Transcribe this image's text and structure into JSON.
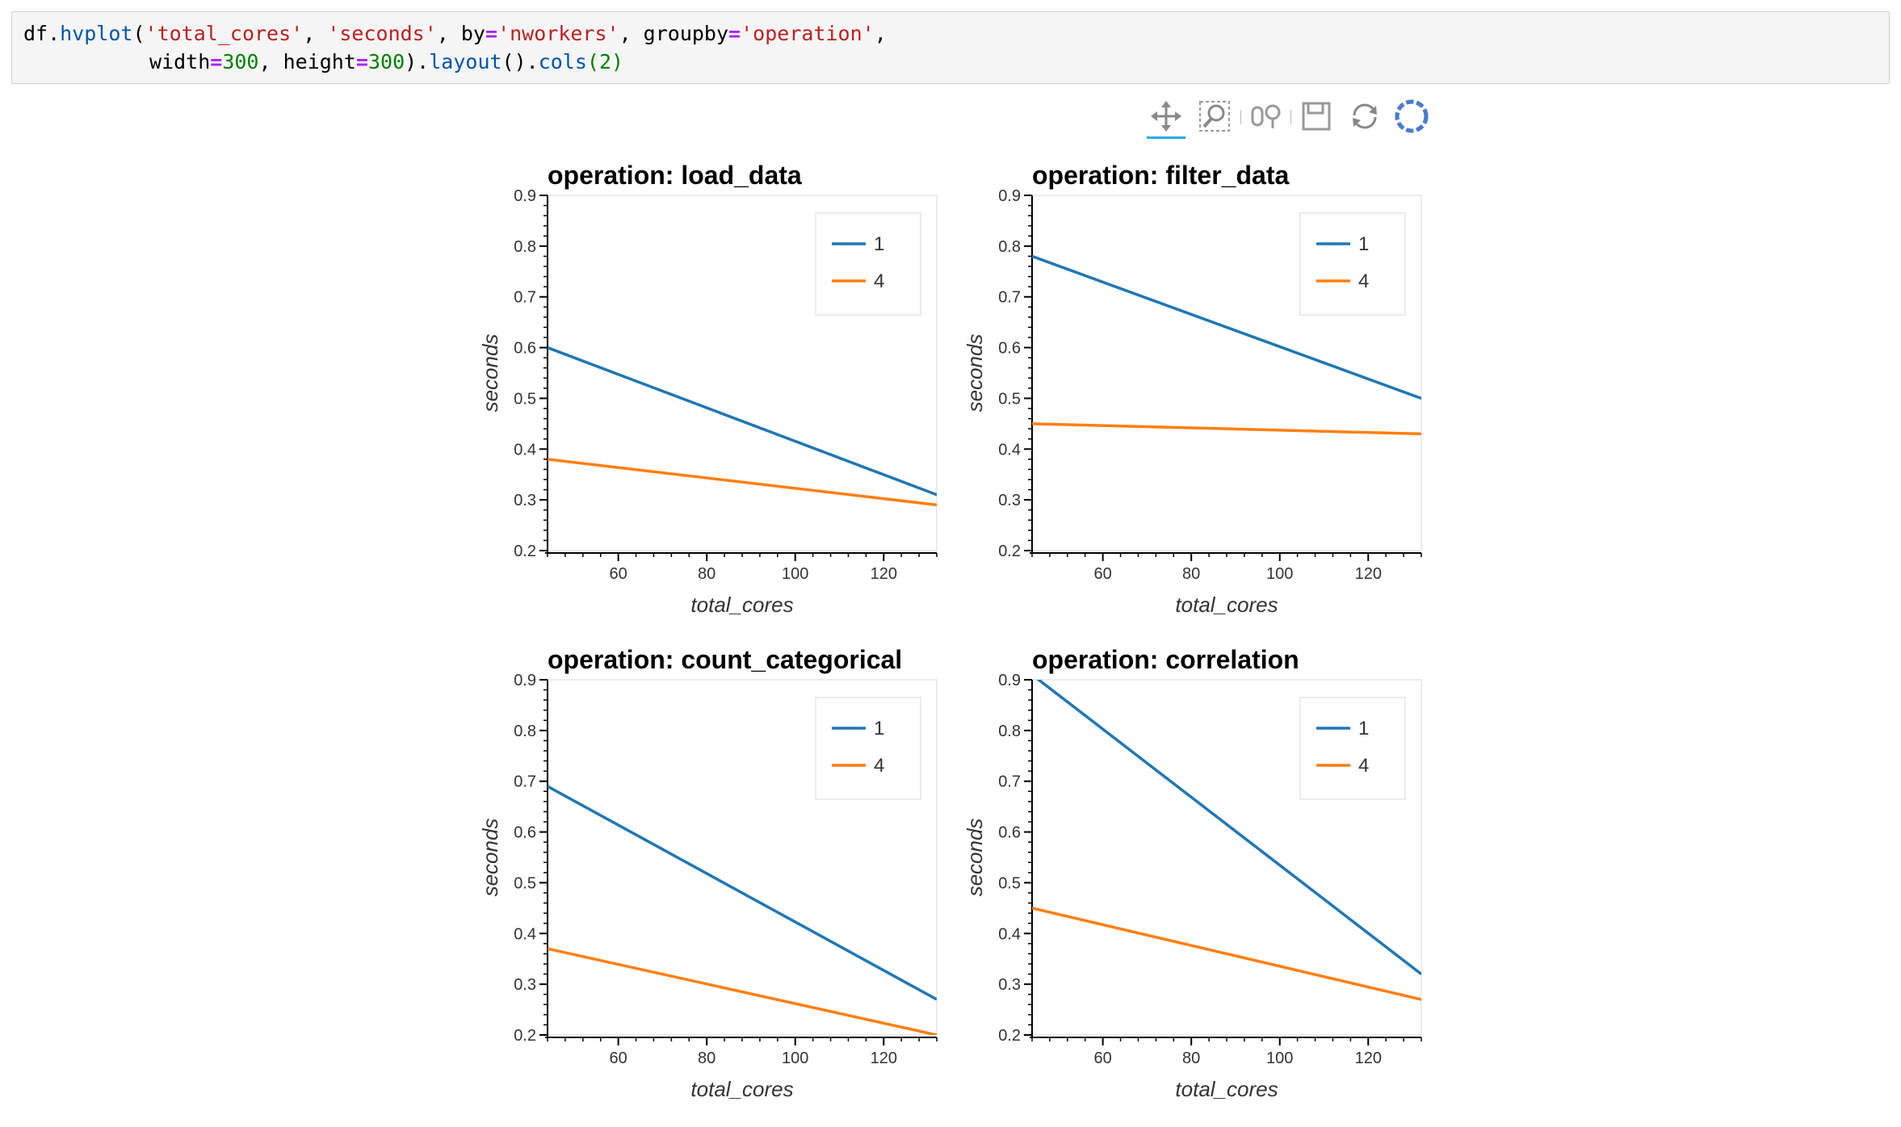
{
  "code": {
    "line1": [
      {
        "t": "df.",
        "c": "plain"
      },
      {
        "t": "hvplot",
        "c": "fn"
      },
      {
        "t": "(",
        "c": "plain"
      },
      {
        "t": "'total_cores'",
        "c": "str"
      },
      {
        "t": ", ",
        "c": "plain"
      },
      {
        "t": "'seconds'",
        "c": "str"
      },
      {
        "t": ", by",
        "c": "plain"
      },
      {
        "t": "=",
        "c": "op"
      },
      {
        "t": "'nworkers'",
        "c": "str"
      },
      {
        "t": ", groupby",
        "c": "plain"
      },
      {
        "t": "=",
        "c": "op"
      },
      {
        "t": "'operation'",
        "c": "str"
      },
      {
        "t": ",",
        "c": "plain"
      }
    ],
    "line2": [
      {
        "t": "width",
        "c": "plain"
      },
      {
        "t": "=",
        "c": "op"
      },
      {
        "t": "300",
        "c": "num"
      },
      {
        "t": ", height",
        "c": "plain"
      },
      {
        "t": "=",
        "c": "op"
      },
      {
        "t": "300",
        "c": "num"
      },
      {
        "t": ").",
        "c": "plain"
      },
      {
        "t": "layout",
        "c": "fn"
      },
      {
        "t": "().",
        "c": "plain"
      },
      {
        "t": "cols",
        "c": "fn"
      },
      {
        "t": "(2)",
        "c": "num"
      }
    ]
  },
  "toolbar": {
    "tools": [
      "pan-icon",
      "box-zoom-icon",
      "wheel-zoom-icon",
      "save-icon",
      "reset-icon",
      "bokeh-logo-icon"
    ],
    "active": "pan-icon",
    "active_color": "#26aae1"
  },
  "colors": {
    "series_1": "#1f77b4",
    "series_4": "#ff7f0e"
  },
  "chart_data": [
    {
      "type": "line",
      "title": "operation: load_data",
      "xlabel": "total_cores",
      "ylabel": "seconds",
      "xlim": [
        44,
        132
      ],
      "ylim": [
        0.2,
        0.9
      ],
      "xticks": [
        60,
        80,
        100,
        120
      ],
      "yticks": [
        0.2,
        0.3,
        0.4,
        0.5,
        0.6,
        0.7,
        0.8,
        0.9
      ],
      "grid": false,
      "legend": "top-right",
      "series": [
        {
          "name": "1",
          "x": [
            44,
            132
          ],
          "y": [
            0.6,
            0.31
          ]
        },
        {
          "name": "4",
          "x": [
            44,
            132
          ],
          "y": [
            0.38,
            0.29
          ]
        }
      ]
    },
    {
      "type": "line",
      "title": "operation: filter_data",
      "xlabel": "total_cores",
      "ylabel": "seconds",
      "xlim": [
        44,
        132
      ],
      "ylim": [
        0.2,
        0.9
      ],
      "xticks": [
        60,
        80,
        100,
        120
      ],
      "yticks": [
        0.2,
        0.3,
        0.4,
        0.5,
        0.6,
        0.7,
        0.8,
        0.9
      ],
      "grid": false,
      "legend": "top-right",
      "series": [
        {
          "name": "1",
          "x": [
            44,
            132
          ],
          "y": [
            0.78,
            0.5
          ]
        },
        {
          "name": "4",
          "x": [
            44,
            132
          ],
          "y": [
            0.45,
            0.43
          ]
        }
      ]
    },
    {
      "type": "line",
      "title": "operation: count_categorical",
      "xlabel": "total_cores",
      "ylabel": "seconds",
      "xlim": [
        44,
        132
      ],
      "ylim": [
        0.2,
        0.9
      ],
      "xticks": [
        60,
        80,
        100,
        120
      ],
      "yticks": [
        0.2,
        0.3,
        0.4,
        0.5,
        0.6,
        0.7,
        0.8,
        0.9
      ],
      "grid": false,
      "legend": "top-right",
      "series": [
        {
          "name": "1",
          "x": [
            44,
            132
          ],
          "y": [
            0.69,
            0.27
          ]
        },
        {
          "name": "4",
          "x": [
            44,
            132
          ],
          "y": [
            0.37,
            0.2
          ]
        }
      ]
    },
    {
      "type": "line",
      "title": "operation: correlation",
      "xlabel": "total_cores",
      "ylabel": "seconds",
      "xlim": [
        44,
        132
      ],
      "ylim": [
        0.2,
        0.9
      ],
      "xticks": [
        60,
        80,
        100,
        120
      ],
      "yticks": [
        0.2,
        0.3,
        0.4,
        0.5,
        0.6,
        0.7,
        0.8,
        0.9
      ],
      "grid": false,
      "legend": "top-right",
      "series": [
        {
          "name": "1",
          "x": [
            44,
            132
          ],
          "y": [
            0.91,
            0.32
          ]
        },
        {
          "name": "4",
          "x": [
            44,
            132
          ],
          "y": [
            0.45,
            0.27
          ]
        }
      ]
    }
  ]
}
